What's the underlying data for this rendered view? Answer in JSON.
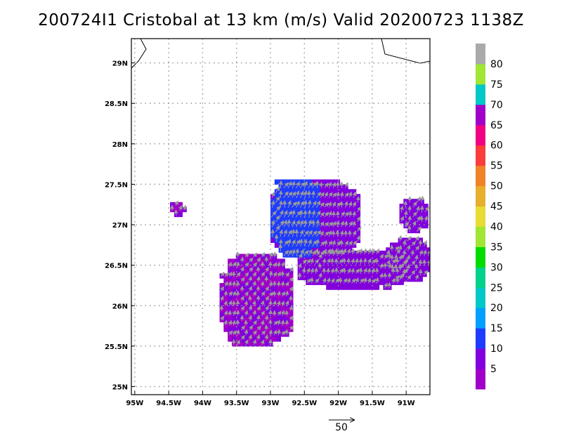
{
  "chart_data": {
    "type": "heatmap",
    "title": "200724I1 Cristobal at 13 km (m/s) Valid 20200723 1138Z",
    "xlabel": "",
    "ylabel": "",
    "xlim": [
      -95.05,
      -90.65
    ],
    "ylim": [
      24.9,
      29.3
    ],
    "x_ticks": [
      -95,
      -94.5,
      -94,
      -93.5,
      -93,
      -92.5,
      -92,
      -91.5,
      -91
    ],
    "x_tick_labels": [
      "95W",
      "94.5W",
      "94W",
      "93.5W",
      "93W",
      "92.5W",
      "92W",
      "91.5W",
      "91W"
    ],
    "y_ticks": [
      25,
      25.5,
      26,
      26.5,
      27,
      27.5,
      28,
      28.5,
      29
    ],
    "y_tick_labels": [
      "25N",
      "25.5N",
      "26N",
      "26.5N",
      "27N",
      "27.5N",
      "28N",
      "28.5N",
      "29N"
    ],
    "grid": true,
    "colorbar": {
      "levels": [
        5,
        10,
        15,
        20,
        25,
        30,
        35,
        40,
        45,
        50,
        55,
        60,
        65,
        70,
        75,
        80
      ],
      "colors": [
        "#a000c8",
        "#8200dc",
        "#1e3cff",
        "#00a0ff",
        "#00c8c8",
        "#00d28c",
        "#00dc00",
        "#a0e632",
        "#e6dc32",
        "#e6af2d",
        "#f08228",
        "#fa3c3c",
        "#f00082",
        "#a000c8",
        "#00c8c8",
        "#a0e632",
        "#aaaaaa"
      ]
    },
    "reference_vector": {
      "label": "50",
      "value": 50
    },
    "regions": [
      {
        "name": "main",
        "lon_range": [
          -93.75,
          -92.7
        ],
        "lat_range": [
          25.5,
          26.6
        ],
        "value": 5
      },
      {
        "name": "north-band",
        "lon_range": [
          -93.0,
          -91.7
        ],
        "lat_range": [
          26.6,
          27.5
        ],
        "value": 7
      },
      {
        "name": "east-band",
        "lon_range": [
          -92.6,
          -91.0
        ],
        "lat_range": [
          26.2,
          26.65
        ],
        "value": 6
      },
      {
        "name": "blue-core",
        "lon_range": [
          -93.0,
          -92.3
        ],
        "lat_range": [
          26.6,
          27.55
        ],
        "value": 11
      },
      {
        "name": "east-cell",
        "lon_range": [
          -91.3,
          -90.7
        ],
        "lat_range": [
          26.3,
          26.8
        ],
        "value": 7
      },
      {
        "name": "far-east-cell",
        "lon_range": [
          -91.1,
          -90.7
        ],
        "lat_range": [
          26.9,
          27.3
        ],
        "value": 8
      },
      {
        "name": "isolated-cell",
        "lon_range": [
          -94.48,
          -94.3
        ],
        "lat_range": [
          27.1,
          27.25
        ],
        "value": 5
      }
    ],
    "dominant_wind": "from south-southwest, 5-10 m/s"
  }
}
